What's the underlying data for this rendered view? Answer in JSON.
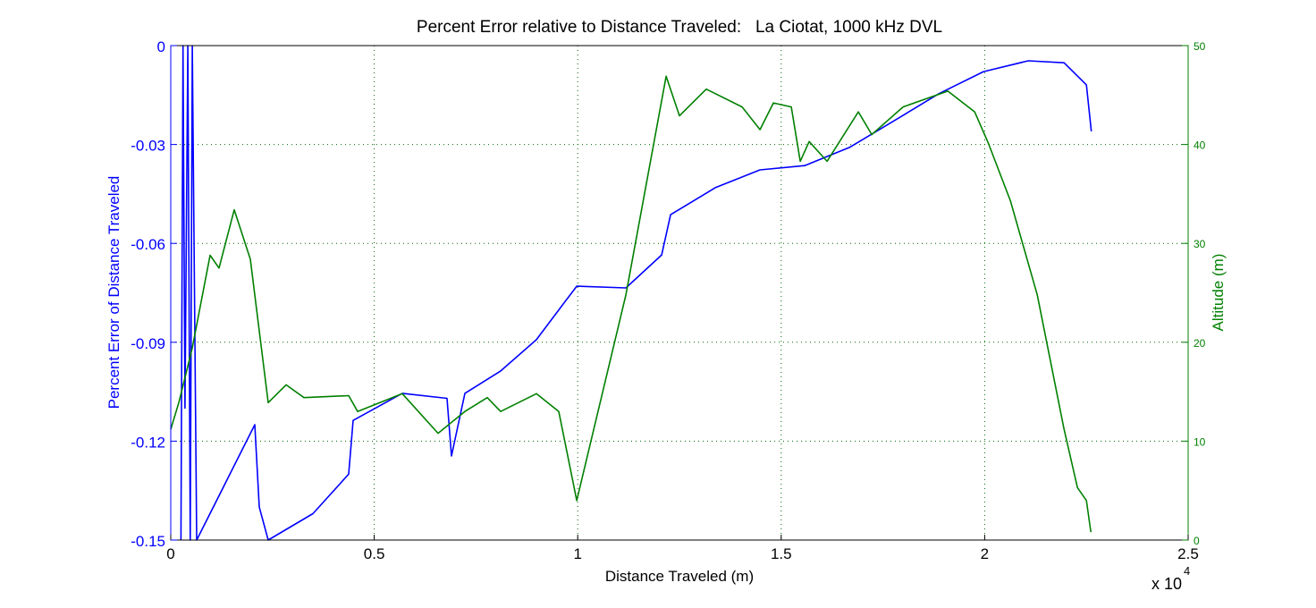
{
  "chart_data": {
    "type": "line",
    "title": "Percent Error relative to Distance Traveled:   La Ciotat, 1000 kHz DVL",
    "xlabel": "Distance Traveled (m)",
    "x_multiplier": "x 10",
    "x_multiplier_exp": "4",
    "ylabel_left": "Percent Error of Distance Traveled",
    "ylabel_right": "Altitude (m)",
    "xlim": [
      0,
      25000
    ],
    "ylim_left": [
      -0.15,
      0
    ],
    "ylim_right": [
      0,
      50
    ],
    "x_ticks": [
      "0",
      "0.5",
      "1",
      "1.5",
      "2",
      "2.5"
    ],
    "x_tick_values": [
      0,
      5000,
      10000,
      15000,
      20000,
      25000
    ],
    "y_left_ticks": [
      "0",
      "-0.03",
      "-0.06",
      "-0.09",
      "-0.12",
      "-0.15"
    ],
    "y_left_tick_values": [
      0,
      -0.03,
      -0.06,
      -0.09,
      -0.12,
      -0.15
    ],
    "y_right_ticks": [
      "50",
      "40",
      "30",
      "20",
      "10",
      "0"
    ],
    "y_right_tick_values": [
      50,
      40,
      30,
      20,
      10,
      0
    ],
    "grid": true,
    "colors": {
      "left": "#0000ff",
      "right": "#008000",
      "grid": "#006400"
    },
    "series": [
      {
        "axis": "left",
        "color": "#0000ff",
        "x": [
          250,
          300,
          350,
          420,
          480,
          530,
          637,
          2065,
          2175,
          2395,
          3493,
          4372,
          4482,
          5690,
          6789,
          6899,
          7228,
          8107,
          8986,
          9645,
          9975,
          11183,
          12062,
          12282,
          13380,
          14479,
          15578,
          16677,
          17775,
          18874,
          19972,
          21071,
          21950,
          22500,
          22620
        ],
        "y": [
          -0.15,
          0,
          -0.11,
          0,
          -0.15,
          0,
          -0.15,
          -0.115,
          -0.14,
          -0.15,
          -0.142,
          -0.13,
          -0.1137,
          -0.1055,
          -0.107,
          -0.1245,
          -0.1055,
          -0.0987,
          -0.0892,
          -0.0784,
          -0.073,
          -0.0735,
          -0.0635,
          -0.0513,
          -0.0431,
          -0.0377,
          -0.0364,
          -0.0309,
          -0.0228,
          -0.0146,
          -0.0079,
          -0.0046,
          -0.0052,
          -0.0119,
          -0.026
        ]
      },
      {
        "axis": "right",
        "color": "#008000",
        "x": [
          0,
          198,
          527,
          967,
          1186,
          1560,
          1955,
          2395,
          2834,
          3274,
          4372,
          4592,
          5690,
          6569,
          7228,
          7777,
          8107,
          8986,
          9535,
          9975,
          11183,
          12172,
          12501,
          13160,
          14040,
          14479,
          14809,
          15248,
          15468,
          15688,
          16128,
          16896,
          17226,
          17995,
          19094,
          19753,
          20083,
          20632,
          21291,
          21950,
          22280,
          22500,
          22610
        ],
        "y": [
          11.2,
          13.9,
          19.4,
          28.8,
          27.5,
          33.4,
          28.4,
          13.9,
          15.7,
          14.4,
          14.6,
          13.0,
          14.8,
          10.8,
          13.0,
          14.4,
          13.0,
          14.8,
          13.0,
          4.0,
          24.8,
          46.9,
          42.9,
          45.6,
          43.8,
          41.5,
          44.2,
          43.8,
          38.3,
          40.3,
          38.3,
          43.3,
          41.0,
          43.8,
          45.4,
          43.3,
          40.2,
          34.3,
          24.8,
          11.2,
          5.3,
          4.0,
          0.8
        ]
      }
    ]
  }
}
